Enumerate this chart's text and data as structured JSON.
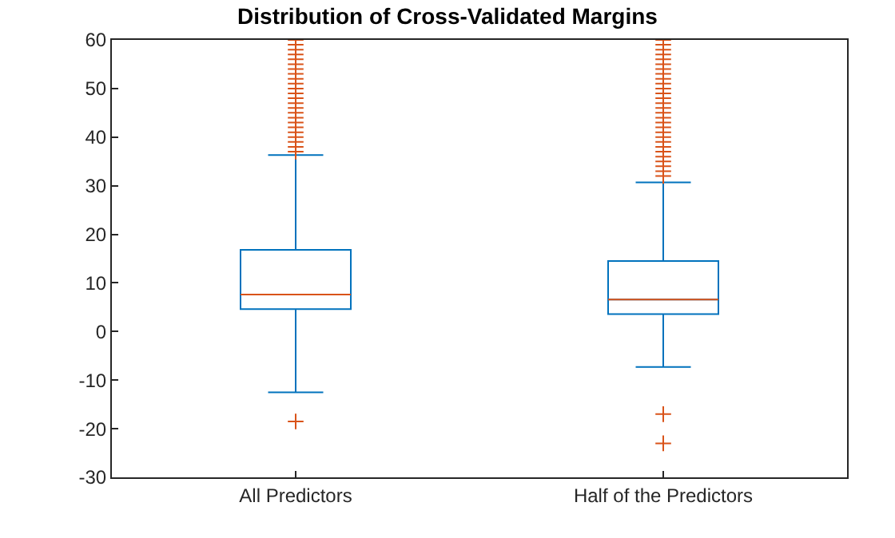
{
  "chart_data": {
    "type": "box",
    "title": "Distribution of Cross-Validated Margins",
    "categories": [
      "All Predictors",
      "Half of the Predictors"
    ],
    "boxes": [
      {
        "low": -12.5,
        "q1": 4.6,
        "median": 7.6,
        "q3": 16.8,
        "high": 36.3,
        "outliers": [
          -18.5,
          37,
          38,
          39,
          40,
          41,
          42,
          43,
          44,
          45,
          46,
          47,
          48,
          49,
          50,
          51,
          52,
          53,
          54,
          55,
          56,
          57,
          58,
          59,
          60
        ]
      },
      {
        "low": -7.3,
        "q1": 3.6,
        "median": 6.6,
        "q3": 14.5,
        "high": 30.7,
        "outliers": [
          -17,
          -23,
          32,
          33,
          34,
          35,
          36,
          37,
          38,
          39,
          40,
          41,
          42,
          43,
          44,
          45,
          46,
          47,
          48,
          49,
          50,
          51,
          52,
          53,
          54,
          55,
          56,
          57,
          58,
          59,
          60
        ]
      }
    ],
    "color": "#0072bd",
    "ylim": [
      -30,
      60
    ],
    "yticks": [
      -30,
      -20,
      -10,
      0,
      10,
      20,
      30,
      40,
      50,
      60
    ],
    "grid": false,
    "marker": "cross"
  }
}
